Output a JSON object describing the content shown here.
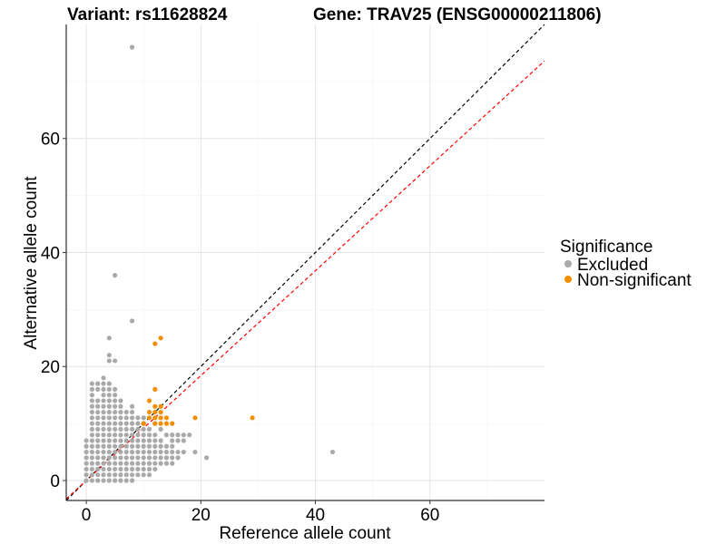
{
  "title": {
    "variant": "Variant: rs11628824",
    "gene": "Gene: TRAV25 (ENSG00000211806)"
  },
  "chart_data": {
    "type": "scatter",
    "xlabel": "Reference allele count",
    "ylabel": "Alternative allele count",
    "xlim": [
      -3.5,
      80
    ],
    "ylim": [
      -3.5,
      80
    ],
    "xticks": [
      0,
      20,
      40,
      60
    ],
    "yticks": [
      0,
      20,
      40,
      60
    ],
    "xtick_labels": [
      "0",
      "20",
      "40",
      "60"
    ],
    "ytick_labels": [
      "0",
      "20",
      "40",
      "60"
    ],
    "grid": true,
    "reference_lines": [
      {
        "name": "identity",
        "slope": 1.0,
        "intercept": 0,
        "color": "#000000",
        "style": "dashed"
      },
      {
        "name": "expected-ratio",
        "slope": 0.92,
        "intercept": 0,
        "color": "#ff0000",
        "style": "dashed"
      }
    ],
    "legend": {
      "title": "Significance",
      "position": "right",
      "entries": [
        {
          "label": "Excluded",
          "color": "#a9a9a9"
        },
        {
          "label": "Non-significant",
          "color": "#f28e00"
        }
      ]
    },
    "series": [
      {
        "name": "Excluded",
        "color": "#a9a9a9",
        "points": [
          [
            0,
            0
          ],
          [
            1,
            0
          ],
          [
            2,
            0
          ],
          [
            3,
            0
          ],
          [
            4,
            0
          ],
          [
            5,
            0
          ],
          [
            6,
            0
          ],
          [
            7,
            0
          ],
          [
            8,
            0
          ],
          [
            0,
            1
          ],
          [
            1,
            1
          ],
          [
            2,
            1
          ],
          [
            3,
            1
          ],
          [
            4,
            1
          ],
          [
            5,
            1
          ],
          [
            6,
            1
          ],
          [
            7,
            1
          ],
          [
            8,
            1
          ],
          [
            9,
            1
          ],
          [
            10,
            1
          ],
          [
            11,
            1
          ],
          [
            0,
            2
          ],
          [
            1,
            2
          ],
          [
            2,
            2
          ],
          [
            3,
            2
          ],
          [
            4,
            2
          ],
          [
            5,
            2
          ],
          [
            6,
            2
          ],
          [
            7,
            2
          ],
          [
            8,
            2
          ],
          [
            9,
            2
          ],
          [
            10,
            2
          ],
          [
            11,
            2
          ],
          [
            12,
            2
          ],
          [
            0,
            3
          ],
          [
            1,
            3
          ],
          [
            2,
            3
          ],
          [
            3,
            3
          ],
          [
            4,
            3
          ],
          [
            5,
            3
          ],
          [
            6,
            3
          ],
          [
            7,
            3
          ],
          [
            8,
            3
          ],
          [
            9,
            3
          ],
          [
            10,
            3
          ],
          [
            11,
            3
          ],
          [
            12,
            3
          ],
          [
            13,
            3
          ],
          [
            14,
            3
          ],
          [
            15,
            3
          ],
          [
            0,
            4
          ],
          [
            1,
            4
          ],
          [
            2,
            4
          ],
          [
            3,
            4
          ],
          [
            4,
            4
          ],
          [
            5,
            4
          ],
          [
            6,
            4
          ],
          [
            7,
            4
          ],
          [
            8,
            4
          ],
          [
            9,
            4
          ],
          [
            10,
            4
          ],
          [
            11,
            4
          ],
          [
            12,
            4
          ],
          [
            13,
            4
          ],
          [
            14,
            4
          ],
          [
            15,
            4
          ],
          [
            16,
            4
          ],
          [
            21,
            4
          ],
          [
            0,
            5
          ],
          [
            1,
            5
          ],
          [
            2,
            5
          ],
          [
            3,
            5
          ],
          [
            4,
            5
          ],
          [
            5,
            5
          ],
          [
            6,
            5
          ],
          [
            7,
            5
          ],
          [
            8,
            5
          ],
          [
            9,
            5
          ],
          [
            10,
            5
          ],
          [
            11,
            5
          ],
          [
            12,
            5
          ],
          [
            13,
            5
          ],
          [
            14,
            5
          ],
          [
            15,
            5
          ],
          [
            16,
            5
          ],
          [
            17,
            5
          ],
          [
            19,
            5
          ],
          [
            43,
            5
          ],
          [
            0,
            6
          ],
          [
            1,
            6
          ],
          [
            2,
            6
          ],
          [
            3,
            6
          ],
          [
            4,
            6
          ],
          [
            5,
            6
          ],
          [
            6,
            6
          ],
          [
            7,
            6
          ],
          [
            8,
            6
          ],
          [
            9,
            6
          ],
          [
            10,
            6
          ],
          [
            11,
            6
          ],
          [
            12,
            6
          ],
          [
            13,
            6
          ],
          [
            14,
            6
          ],
          [
            15,
            6
          ],
          [
            0,
            7
          ],
          [
            1,
            7
          ],
          [
            2,
            7
          ],
          [
            3,
            7
          ],
          [
            4,
            7
          ],
          [
            5,
            7
          ],
          [
            6,
            7
          ],
          [
            7,
            7
          ],
          [
            8,
            7
          ],
          [
            9,
            7
          ],
          [
            10,
            7
          ],
          [
            11,
            7
          ],
          [
            12,
            7
          ],
          [
            13,
            7
          ],
          [
            15,
            7
          ],
          [
            16,
            7
          ],
          [
            17,
            7
          ],
          [
            1,
            8
          ],
          [
            2,
            8
          ],
          [
            3,
            8
          ],
          [
            4,
            8
          ],
          [
            5,
            8
          ],
          [
            6,
            8
          ],
          [
            7,
            8
          ],
          [
            8,
            8
          ],
          [
            9,
            8
          ],
          [
            10,
            8
          ],
          [
            11,
            8
          ],
          [
            12,
            8
          ],
          [
            14,
            8
          ],
          [
            15,
            8
          ],
          [
            16,
            8
          ],
          [
            17,
            8
          ],
          [
            18,
            8
          ],
          [
            1,
            9
          ],
          [
            2,
            9
          ],
          [
            3,
            9
          ],
          [
            4,
            9
          ],
          [
            5,
            9
          ],
          [
            6,
            9
          ],
          [
            7,
            9
          ],
          [
            8,
            9
          ],
          [
            9,
            9
          ],
          [
            10,
            9
          ],
          [
            11,
            9
          ],
          [
            13,
            9
          ],
          [
            1,
            10
          ],
          [
            2,
            10
          ],
          [
            3,
            10
          ],
          [
            4,
            10
          ],
          [
            5,
            10
          ],
          [
            6,
            10
          ],
          [
            7,
            10
          ],
          [
            8,
            10
          ],
          [
            9,
            10
          ],
          [
            10,
            10
          ],
          [
            12,
            10
          ],
          [
            1,
            11
          ],
          [
            2,
            11
          ],
          [
            3,
            11
          ],
          [
            4,
            11
          ],
          [
            5,
            11
          ],
          [
            6,
            11
          ],
          [
            7,
            11
          ],
          [
            8,
            11
          ],
          [
            9,
            11
          ],
          [
            10,
            11
          ],
          [
            1,
            12
          ],
          [
            2,
            12
          ],
          [
            3,
            12
          ],
          [
            4,
            12
          ],
          [
            5,
            12
          ],
          [
            6,
            12
          ],
          [
            7,
            12
          ],
          [
            8,
            12
          ],
          [
            1,
            13
          ],
          [
            2,
            13
          ],
          [
            3,
            13
          ],
          [
            4,
            13
          ],
          [
            5,
            13
          ],
          [
            6,
            13
          ],
          [
            8,
            13
          ],
          [
            1,
            14
          ],
          [
            2,
            14
          ],
          [
            3,
            14
          ],
          [
            4,
            14
          ],
          [
            5,
            14
          ],
          [
            6,
            14
          ],
          [
            1,
            15
          ],
          [
            3,
            15
          ],
          [
            4,
            15
          ],
          [
            5,
            15
          ],
          [
            1,
            16
          ],
          [
            2,
            16
          ],
          [
            3,
            16
          ],
          [
            4,
            16
          ],
          [
            5,
            16
          ],
          [
            1,
            17
          ],
          [
            2,
            17
          ],
          [
            3,
            17
          ],
          [
            4,
            17
          ],
          [
            3,
            18
          ],
          [
            4,
            21
          ],
          [
            5,
            21
          ],
          [
            4,
            22
          ],
          [
            4,
            25
          ],
          [
            8,
            28
          ],
          [
            5,
            36
          ],
          [
            8,
            76
          ]
        ]
      },
      {
        "name": "Non-significant",
        "color": "#f28e00",
        "points": [
          [
            10,
            10
          ],
          [
            11,
            11
          ],
          [
            11,
            12
          ],
          [
            12,
            12
          ],
          [
            12,
            11
          ],
          [
            12,
            10
          ],
          [
            13,
            12
          ],
          [
            13,
            11
          ],
          [
            13,
            10
          ],
          [
            14,
            11
          ],
          [
            14,
            10
          ],
          [
            15,
            10
          ],
          [
            12,
            13
          ],
          [
            13,
            13
          ],
          [
            11,
            14
          ],
          [
            12,
            16
          ],
          [
            12,
            24
          ],
          [
            13,
            25
          ],
          [
            19,
            11
          ],
          [
            29,
            11
          ]
        ]
      }
    ]
  }
}
